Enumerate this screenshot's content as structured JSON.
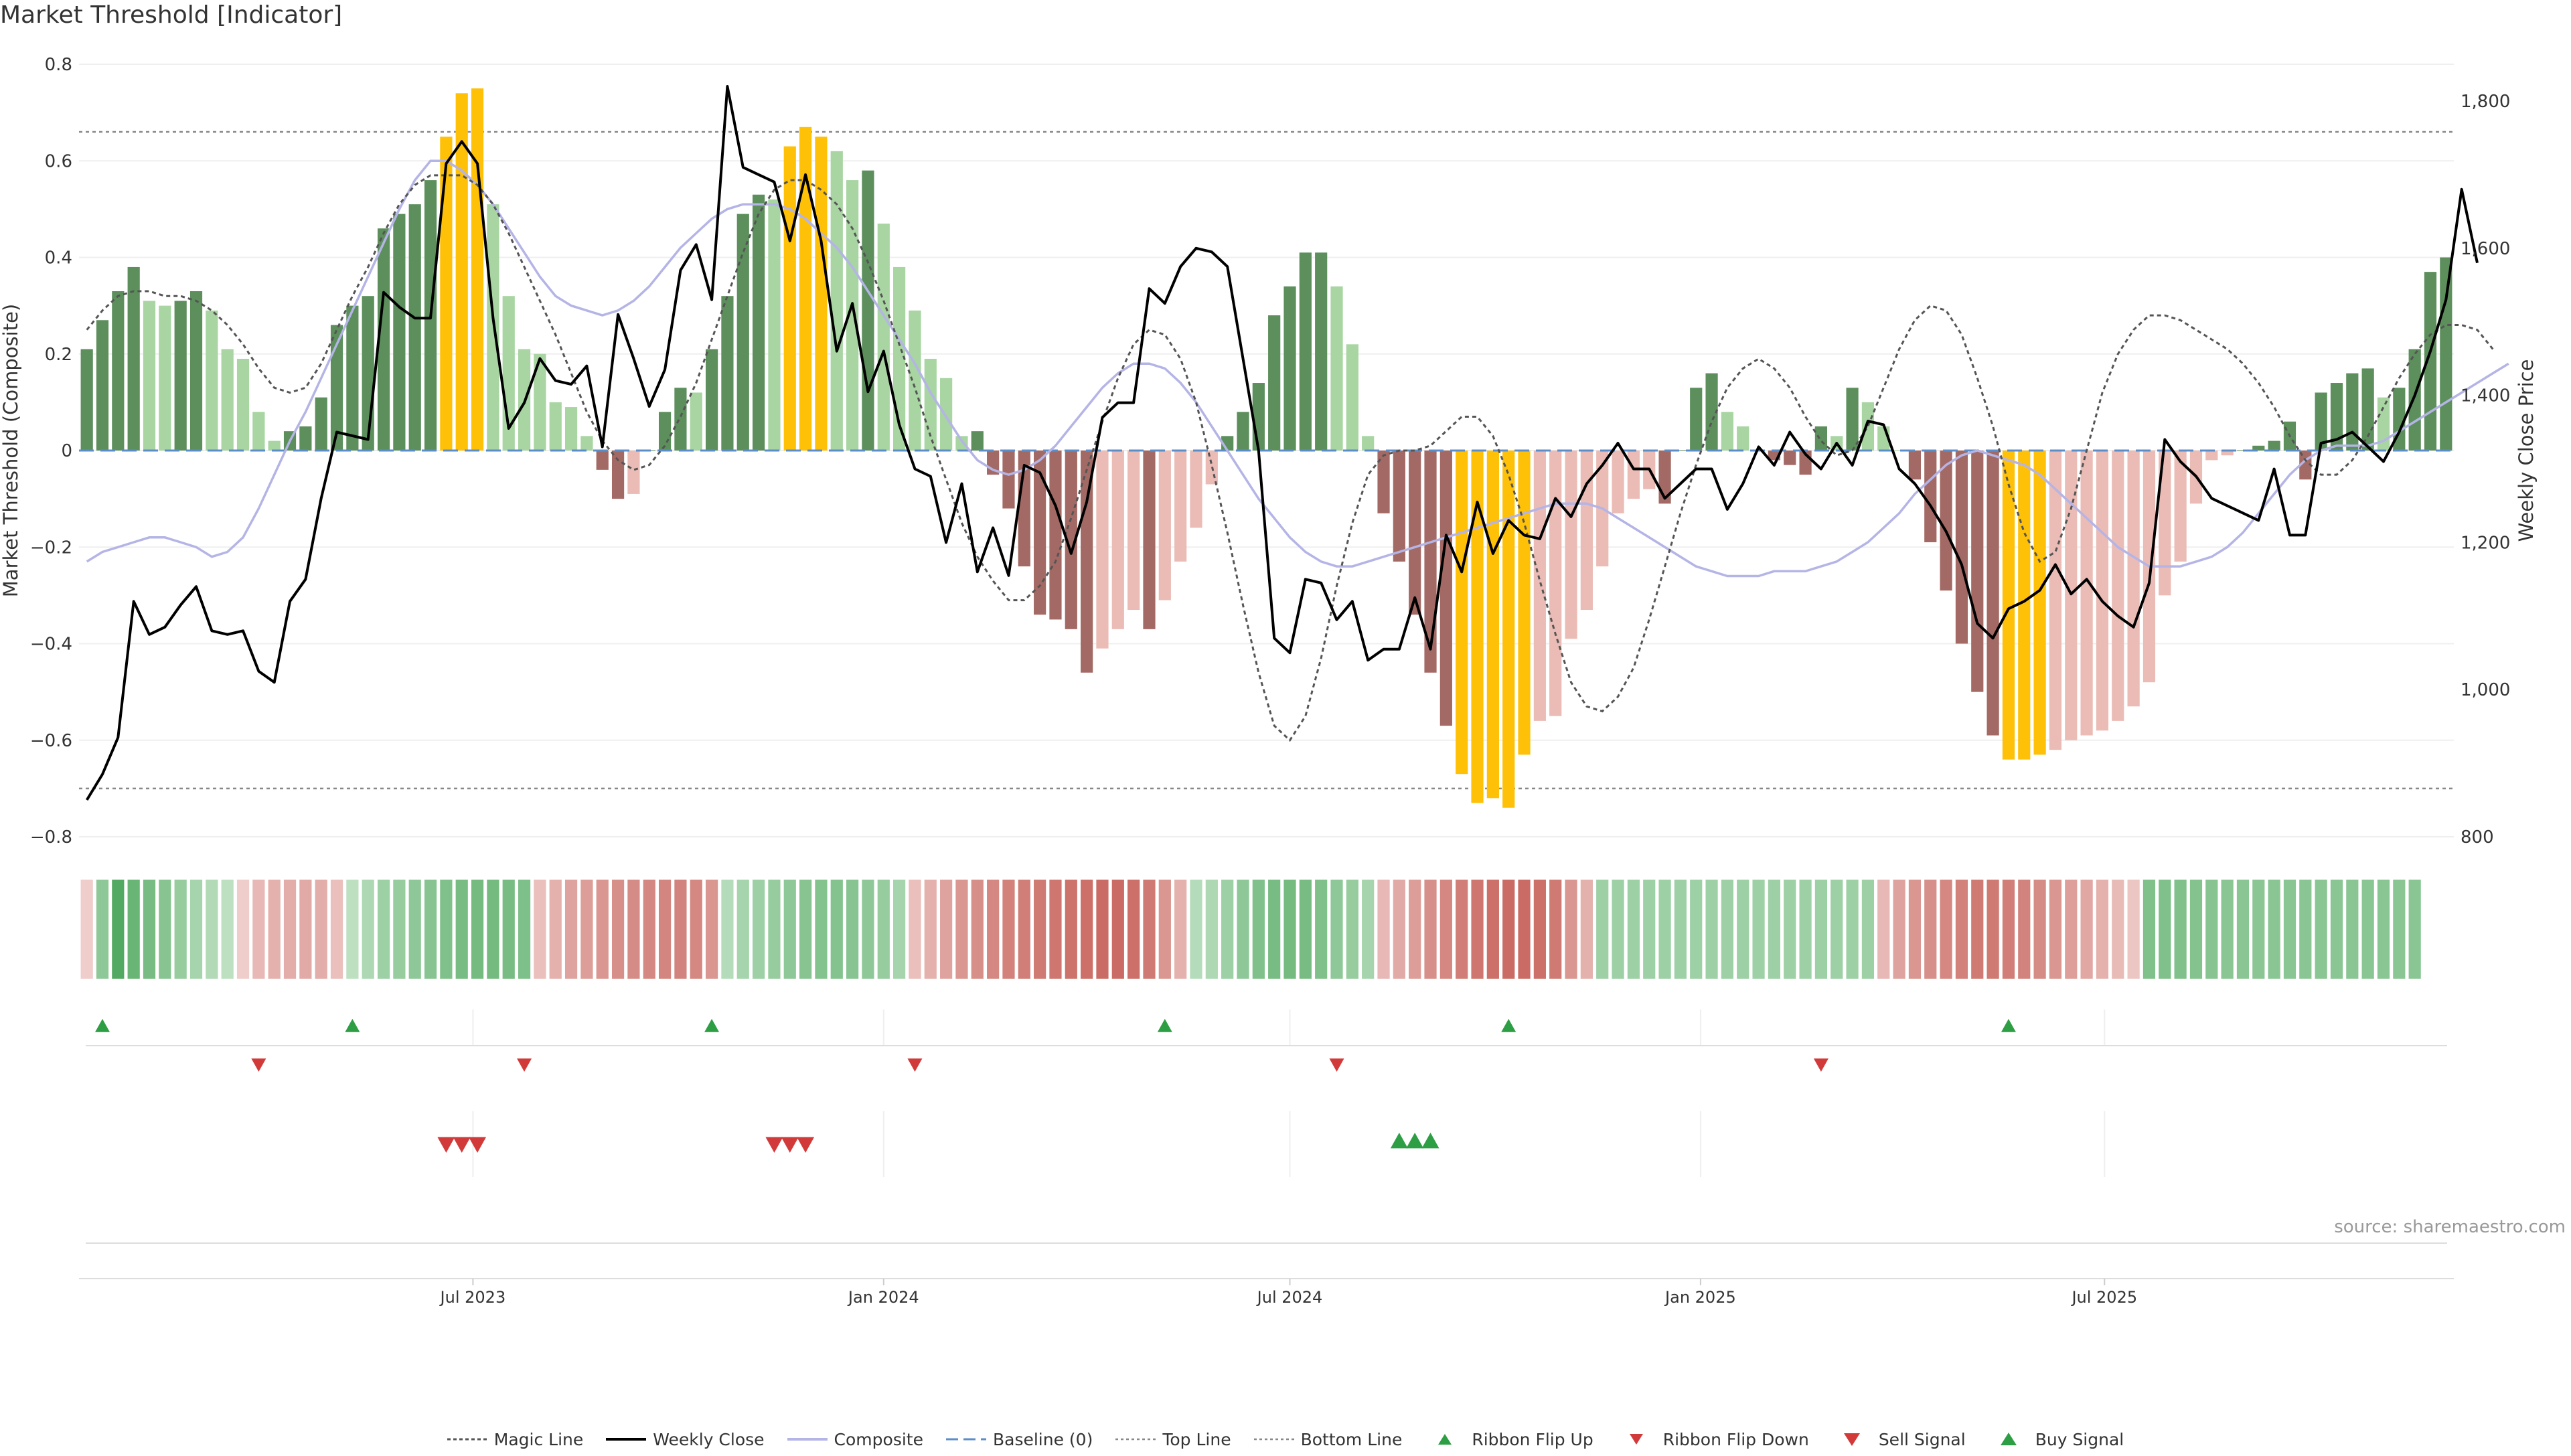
{
  "title": "Market Threshold [Indicator]",
  "source": "source: sharemaestro.com",
  "colors": {
    "bull_dark": "#5c8f5c",
    "bull_light": "#a8d5a2",
    "bear_dark": "#a36a65",
    "bear_light": "#ebbcb6",
    "extreme": "#ffc107",
    "weekly_close": "#000000",
    "magic_line": "#555555",
    "composite": "#b4b4e6",
    "baseline": "#5b8dc9",
    "threshold": "#888888",
    "buy": "#2e9e44",
    "sell": "#d23a3a"
  },
  "chart_data": {
    "type": "bar",
    "ylabel": "Market Threshold (Composite)",
    "y2label": "Weekly Close Price",
    "ylim": [
      -0.8,
      0.8
    ],
    "y2lim": [
      800,
      1850
    ],
    "y_ticks": [
      "0.8",
      "0.6",
      "0.4",
      "0.2",
      "0",
      "−0.2",
      "−0.4",
      "−0.6",
      "−0.8"
    ],
    "y_tick_values": [
      0.8,
      0.6,
      0.4,
      0.2,
      0,
      -0.2,
      -0.4,
      -0.6,
      -0.8
    ],
    "y2_ticks": [
      "1,800",
      "1,600",
      "1,400",
      "1,200",
      "1,000",
      "800"
    ],
    "y2_tick_values": [
      1800,
      1600,
      1400,
      1200,
      1000,
      800
    ],
    "top_line": 0.66,
    "bottom_line": -0.7,
    "baseline": 0,
    "x_start": "2023-01-09",
    "x_interval": "weekly",
    "x_tick_labels": [
      "Jul 2023",
      "Jan 2024",
      "Jul 2024",
      "Jan 2025",
      "Jul 2025"
    ],
    "x_tick_dates": [
      "2023-07-01",
      "2024-01-01",
      "2024-07-01",
      "2025-01-01",
      "2025-07-01"
    ],
    "composite_bars": [
      0.21,
      0.27,
      0.33,
      0.38,
      0.31,
      0.3,
      0.31,
      0.33,
      0.29,
      0.21,
      0.19,
      0.08,
      0.02,
      0.04,
      0.05,
      0.11,
      0.26,
      0.3,
      0.32,
      0.46,
      0.49,
      0.51,
      0.56,
      0.65,
      0.74,
      0.75,
      0.51,
      0.32,
      0.21,
      0.2,
      0.1,
      0.09,
      0.03,
      -0.04,
      -0.1,
      -0.09,
      0.0,
      0.08,
      0.13,
      0.12,
      0.21,
      0.32,
      0.49,
      0.53,
      0.52,
      0.63,
      0.67,
      0.65,
      0.62,
      0.56,
      0.58,
      0.47,
      0.38,
      0.29,
      0.19,
      0.15,
      0.03,
      0.04,
      -0.05,
      -0.12,
      -0.24,
      -0.34,
      -0.35,
      -0.37,
      -0.46,
      -0.41,
      -0.37,
      -0.33,
      -0.37,
      -0.31,
      -0.23,
      -0.16,
      -0.07,
      0.03,
      0.08,
      0.14,
      0.28,
      0.34,
      0.41,
      0.41,
      0.34,
      0.22,
      0.03,
      -0.13,
      -0.23,
      -0.34,
      -0.46,
      -0.57,
      -0.67,
      -0.73,
      -0.72,
      -0.74,
      -0.63,
      -0.56,
      -0.55,
      -0.39,
      -0.33,
      -0.24,
      -0.13,
      -0.1,
      -0.08,
      -0.11,
      0.0,
      0.13,
      0.16,
      0.08,
      0.05,
      0.0,
      -0.02,
      -0.03,
      -0.05,
      0.05,
      0.03,
      0.13,
      0.1,
      0.05,
      0.0,
      -0.06,
      -0.19,
      -0.29,
      -0.4,
      -0.5,
      -0.59,
      -0.64,
      -0.64,
      -0.63,
      -0.62,
      -0.6,
      -0.59,
      -0.58,
      -0.56,
      -0.53,
      -0.48,
      -0.3,
      -0.23,
      -0.11,
      -0.02,
      -0.01,
      0.0,
      0.01,
      0.02,
      0.06,
      -0.06,
      0.12,
      0.14,
      0.16,
      0.17,
      0.11,
      0.13,
      0.21,
      0.37,
      0.4
    ],
    "weekly_close": [
      850,
      885,
      935,
      1120,
      1075,
      1085,
      1115,
      1140,
      1080,
      1075,
      1080,
      1025,
      1010,
      1120,
      1150,
      1260,
      1350,
      1345,
      1340,
      1540,
      1520,
      1505,
      1505,
      1715,
      1745,
      1715,
      1505,
      1355,
      1390,
      1450,
      1420,
      1415,
      1440,
      1330,
      1510,
      1450,
      1385,
      1435,
      1570,
      1605,
      1530,
      1820,
      1710,
      1700,
      1690,
      1610,
      1700,
      1610,
      1460,
      1525,
      1405,
      1460,
      1360,
      1300,
      1290,
      1200,
      1280,
      1160,
      1220,
      1155,
      1305,
      1295,
      1250,
      1185,
      1255,
      1370,
      1390,
      1390,
      1545,
      1525,
      1575,
      1600,
      1595,
      1575,
      1450,
      1325,
      1070,
      1050,
      1150,
      1145,
      1095,
      1120,
      1040,
      1055,
      1055,
      1125,
      1055,
      1210,
      1160,
      1255,
      1185,
      1230,
      1210,
      1205,
      1260,
      1235,
      1280,
      1305,
      1335,
      1300,
      1300,
      1260,
      1280,
      1300,
      1300,
      1245,
      1280,
      1330,
      1305,
      1350,
      1320,
      1300,
      1335,
      1305,
      1365,
      1360,
      1300,
      1280,
      1250,
      1215,
      1170,
      1090,
      1070,
      1110,
      1120,
      1135,
      1170,
      1130,
      1150,
      1120,
      1100,
      1085,
      1145,
      1340,
      1310,
      1290,
      1260,
      1250,
      1240,
      1230,
      1300,
      1210,
      1210,
      1335,
      1340,
      1350,
      1330,
      1310,
      1350,
      1400,
      1460,
      1530,
      1680,
      1580
    ],
    "magic_line": [
      0.25,
      0.29,
      0.32,
      0.33,
      0.33,
      0.32,
      0.32,
      0.31,
      0.29,
      0.26,
      0.22,
      0.17,
      0.13,
      0.12,
      0.13,
      0.18,
      0.25,
      0.32,
      0.38,
      0.45,
      0.51,
      0.55,
      0.57,
      0.57,
      0.57,
      0.55,
      0.51,
      0.45,
      0.38,
      0.31,
      0.24,
      0.16,
      0.08,
      0.02,
      -0.02,
      -0.04,
      -0.03,
      0.01,
      0.07,
      0.14,
      0.23,
      0.32,
      0.41,
      0.49,
      0.54,
      0.56,
      0.56,
      0.54,
      0.51,
      0.46,
      0.39,
      0.31,
      0.22,
      0.13,
      0.03,
      -0.06,
      -0.15,
      -0.22,
      -0.27,
      -0.31,
      -0.31,
      -0.28,
      -0.23,
      -0.14,
      -0.04,
      0.06,
      0.15,
      0.22,
      0.25,
      0.24,
      0.19,
      0.1,
      -0.03,
      -0.17,
      -0.32,
      -0.46,
      -0.57,
      -0.6,
      -0.55,
      -0.43,
      -0.28,
      -0.15,
      -0.05,
      -0.01,
      0.0,
      0.0,
      0.01,
      0.04,
      0.07,
      0.07,
      0.03,
      -0.05,
      -0.15,
      -0.27,
      -0.38,
      -0.48,
      -0.53,
      -0.54,
      -0.51,
      -0.45,
      -0.35,
      -0.24,
      -0.13,
      -0.03,
      0.06,
      0.13,
      0.17,
      0.19,
      0.17,
      0.13,
      0.07,
      0.02,
      -0.01,
      0.0,
      0.05,
      0.13,
      0.21,
      0.27,
      0.3,
      0.29,
      0.24,
      0.15,
      0.05,
      -0.07,
      -0.17,
      -0.23,
      -0.21,
      -0.12,
      0.0,
      0.12,
      0.2,
      0.25,
      0.28,
      0.28,
      0.27,
      0.25,
      0.23,
      0.21,
      0.18,
      0.14,
      0.09,
      0.03,
      -0.02,
      -0.05,
      -0.05,
      -0.02,
      0.03,
      0.09,
      0.15,
      0.2,
      0.24,
      0.26,
      0.26,
      0.25,
      0.21
    ],
    "composite_line": [
      -0.23,
      -0.21,
      -0.2,
      -0.19,
      -0.18,
      -0.18,
      -0.19,
      -0.2,
      -0.22,
      -0.21,
      -0.18,
      -0.12,
      -0.05,
      0.02,
      0.08,
      0.15,
      0.22,
      0.29,
      0.36,
      0.43,
      0.5,
      0.56,
      0.6,
      0.6,
      0.58,
      0.55,
      0.51,
      0.46,
      0.41,
      0.36,
      0.32,
      0.3,
      0.29,
      0.28,
      0.29,
      0.31,
      0.34,
      0.38,
      0.42,
      0.45,
      0.48,
      0.5,
      0.51,
      0.51,
      0.51,
      0.5,
      0.48,
      0.45,
      0.42,
      0.38,
      0.33,
      0.28,
      0.23,
      0.18,
      0.12,
      0.07,
      0.02,
      -0.02,
      -0.04,
      -0.05,
      -0.04,
      -0.02,
      0.01,
      0.05,
      0.09,
      0.13,
      0.16,
      0.18,
      0.18,
      0.17,
      0.14,
      0.1,
      0.05,
      0.0,
      -0.05,
      -0.1,
      -0.14,
      -0.18,
      -0.21,
      -0.23,
      -0.24,
      -0.24,
      -0.23,
      -0.22,
      -0.21,
      -0.2,
      -0.19,
      -0.18,
      -0.17,
      -0.16,
      -0.15,
      -0.14,
      -0.13,
      -0.12,
      -0.11,
      -0.11,
      -0.11,
      -0.12,
      -0.14,
      -0.16,
      -0.18,
      -0.2,
      -0.22,
      -0.24,
      -0.25,
      -0.26,
      -0.26,
      -0.26,
      -0.25,
      -0.25,
      -0.25,
      -0.24,
      -0.23,
      -0.21,
      -0.19,
      -0.16,
      -0.13,
      -0.09,
      -0.06,
      -0.03,
      -0.01,
      0.0,
      -0.01,
      -0.02,
      -0.03,
      -0.05,
      -0.08,
      -0.11,
      -0.14,
      -0.17,
      -0.2,
      -0.22,
      -0.24,
      -0.24,
      -0.24,
      -0.23,
      -0.22,
      -0.2,
      -0.17,
      -0.13,
      -0.09,
      -0.05,
      -0.02,
      0.0,
      0.01,
      0.01,
      0.01,
      0.02,
      0.04,
      0.06,
      0.08,
      0.1,
      0.12,
      0.14,
      0.16,
      0.18
    ],
    "ribbon": [
      -0.15,
      0.55,
      0.95,
      0.8,
      0.7,
      0.6,
      0.5,
      0.4,
      0.32,
      0.25,
      -0.15,
      -0.3,
      -0.35,
      -0.38,
      -0.4,
      -0.38,
      -0.25,
      0.25,
      0.35,
      0.45,
      0.5,
      0.55,
      0.6,
      0.65,
      0.7,
      0.72,
      0.72,
      0.7,
      0.66,
      -0.25,
      -0.35,
      -0.45,
      -0.5,
      -0.55,
      -0.6,
      -0.62,
      -0.65,
      -0.67,
      -0.68,
      -0.65,
      -0.55,
      0.3,
      0.4,
      0.45,
      0.5,
      0.55,
      0.6,
      0.62,
      0.62,
      0.6,
      0.55,
      0.5,
      0.4,
      -0.25,
      -0.35,
      -0.45,
      -0.55,
      -0.6,
      -0.65,
      -0.7,
      -0.72,
      -0.75,
      -0.78,
      -0.8,
      -0.82,
      -0.85,
      -0.85,
      -0.82,
      -0.75,
      -0.55,
      -0.35,
      0.3,
      0.35,
      0.45,
      0.55,
      0.65,
      0.7,
      0.72,
      0.7,
      0.65,
      0.55,
      0.5,
      0.4,
      -0.3,
      -0.4,
      -0.5,
      -0.6,
      -0.65,
      -0.72,
      -0.78,
      -0.82,
      -0.85,
      -0.85,
      -0.82,
      -0.75,
      -0.55,
      -0.35,
      0.45,
      0.45,
      0.45,
      0.45,
      0.45,
      0.45,
      0.45,
      0.45,
      0.45,
      0.45,
      0.45,
      0.45,
      0.45,
      0.45,
      0.45,
      0.45,
      0.45,
      0.45,
      -0.3,
      -0.45,
      -0.55,
      -0.6,
      -0.65,
      -0.7,
      -0.75,
      -0.75,
      -0.72,
      -0.68,
      -0.62,
      -0.55,
      -0.48,
      -0.42,
      -0.35,
      -0.28,
      -0.2,
      0.65,
      0.65,
      0.65,
      0.62,
      0.6,
      0.58,
      0.58,
      0.58,
      0.58,
      0.58,
      0.58,
      0.58,
      0.58,
      0.58,
      0.58,
      0.58,
      0.58,
      0.58
    ],
    "ribbon_flip_up_weeks": [
      1,
      17,
      40,
      69,
      91,
      123
    ],
    "ribbon_flip_down_weeks": [
      11,
      28,
      53,
      80,
      111
    ],
    "sell_signal_weeks": [
      23,
      24,
      25,
      44,
      45,
      46
    ],
    "buy_signal_weeks": [
      84,
      85,
      86
    ],
    "legend": [
      {
        "key": "magic",
        "label": "Magic Line"
      },
      {
        "key": "close",
        "label": "Weekly Close"
      },
      {
        "key": "composite",
        "label": "Composite"
      },
      {
        "key": "baseline",
        "label": "Baseline (0)"
      },
      {
        "key": "top",
        "label": "Top Line"
      },
      {
        "key": "bottom",
        "label": "Bottom Line"
      },
      {
        "key": "flipup",
        "label": "Ribbon Flip Up"
      },
      {
        "key": "flipdown",
        "label": "Ribbon Flip Down"
      },
      {
        "key": "sell",
        "label": "Sell Signal"
      },
      {
        "key": "buy",
        "label": "Buy Signal"
      }
    ]
  }
}
